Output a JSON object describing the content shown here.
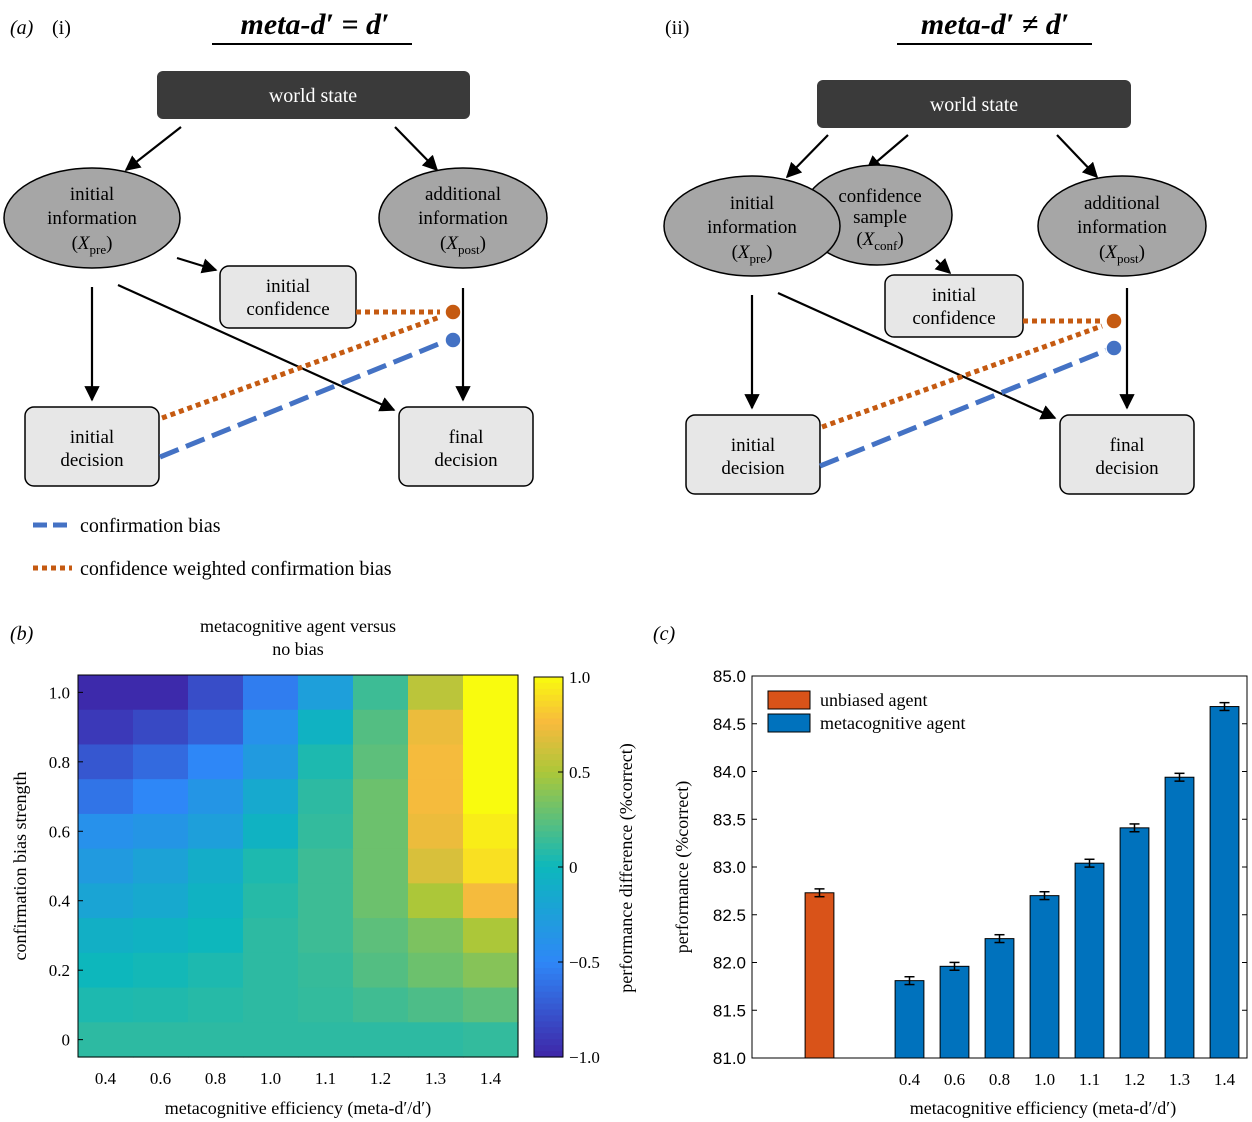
{
  "panel_a": {
    "panel_label": "(a)",
    "left": {
      "label": "(i)",
      "title": "meta-d′ = d′",
      "world_state": "world state",
      "initial_information": {
        "line1": "initial",
        "line2": "information",
        "var": "X",
        "sub": "pre"
      },
      "additional_information": {
        "line1": "additional",
        "line2": "information",
        "var": "X",
        "sub": "post"
      },
      "initial_confidence": {
        "line1": "initial",
        "line2": "confidence"
      },
      "initial_decision": {
        "line1": "initial",
        "line2": "decision"
      },
      "final_decision": {
        "line1": "final",
        "line2": "decision"
      }
    },
    "right": {
      "label": "(ii)",
      "title": "meta-d′ ≠ d′",
      "world_state": "world state",
      "initial_information": {
        "line1": "initial",
        "line2": "information",
        "var": "X",
        "sub": "pre"
      },
      "confidence_sample": {
        "line1": "confidence",
        "line2": "sample",
        "var": "X",
        "sub": "conf"
      },
      "additional_information": {
        "line1": "additional",
        "line2": "information",
        "var": "X",
        "sub": "post"
      },
      "initial_confidence": {
        "line1": "initial",
        "line2": "confidence"
      },
      "initial_decision": {
        "line1": "initial",
        "line2": "decision"
      },
      "final_decision": {
        "line1": "final",
        "line2": "decision"
      }
    },
    "legend": {
      "confirmation_bias": "confirmation bias",
      "confidence_weighted": "confidence weighted confirmation bias"
    },
    "colors": {
      "blue": "#4472c4",
      "orange": "#c55a11",
      "box_dark": "#3a3a3a",
      "node_grey": "#a6a6a6",
      "box_light": "#e7e7e7"
    }
  },
  "chart_data": [
    {
      "type": "heatmap",
      "panel_label": "(b)",
      "title": "metacognitive agent versus\nno bias",
      "xlabel": "metacognitive efficiency (meta-d′/d′)",
      "ylabel": "confirmation bias strength",
      "colorbar_label": "performance difference (%correct)",
      "x_categories": [
        "0.4",
        "0.6",
        "0.8",
        "1.0",
        "1.1",
        "1.2",
        "1.3",
        "1.4"
      ],
      "y_ticks": [
        "1.0",
        "0.8",
        "0.6",
        "0.4",
        "0.2",
        "0"
      ],
      "colorbar_ticks": [
        "1.0",
        "0.5",
        "0",
        "−0.5",
        "−1.0"
      ],
      "clim": [
        -1,
        1
      ],
      "rows_top_to_bottom": [
        [
          -0.98,
          -0.98,
          -0.8,
          -0.55,
          -0.25,
          0.15,
          0.55,
          1.0
        ],
        [
          -0.9,
          -0.82,
          -0.7,
          -0.4,
          -0.05,
          0.22,
          0.72,
          1.0
        ],
        [
          -0.75,
          -0.65,
          -0.5,
          -0.3,
          0.05,
          0.25,
          0.75,
          1.0
        ],
        [
          -0.6,
          -0.5,
          -0.35,
          -0.15,
          0.1,
          0.3,
          0.75,
          1.0
        ],
        [
          -0.4,
          -0.35,
          -0.25,
          -0.05,
          0.12,
          0.3,
          0.72,
          0.95
        ],
        [
          -0.3,
          -0.22,
          -0.1,
          0.05,
          0.15,
          0.3,
          0.65,
          0.9
        ],
        [
          -0.2,
          -0.15,
          -0.05,
          0.08,
          0.15,
          0.3,
          0.5,
          0.75
        ],
        [
          -0.08,
          -0.05,
          0.0,
          0.1,
          0.15,
          0.25,
          0.35,
          0.5
        ],
        [
          0.0,
          0.02,
          0.05,
          0.1,
          0.13,
          0.22,
          0.3,
          0.38
        ],
        [
          0.05,
          0.06,
          0.08,
          0.1,
          0.12,
          0.16,
          0.2,
          0.25
        ],
        [
          0.1,
          0.1,
          0.1,
          0.1,
          0.1,
          0.1,
          0.1,
          0.12
        ]
      ]
    },
    {
      "type": "bar",
      "panel_label": "(c)",
      "xlabel": "metacognitive efficiency (meta-d′/d′)",
      "ylabel": "performance (%correct)",
      "ylim": [
        81.0,
        85.0
      ],
      "y_ticks": [
        "85.0",
        "84.5",
        "84.0",
        "83.5",
        "83.0",
        "82.5",
        "82.0",
        "81.5",
        "81.0"
      ],
      "series": [
        {
          "name": "unbiased agent",
          "color": "#d95319",
          "categories": [
            ""
          ],
          "values": [
            82.73
          ],
          "errors": [
            0.02
          ]
        },
        {
          "name": "metacognitive agent",
          "color": "#0072bd",
          "categories": [
            "0.4",
            "0.6",
            "0.8",
            "1.0",
            "1.1",
            "1.2",
            "1.3",
            "1.4"
          ],
          "values": [
            81.81,
            81.96,
            82.25,
            82.7,
            83.04,
            83.41,
            83.94,
            84.68
          ],
          "errors": [
            0.02,
            0.02,
            0.02,
            0.02,
            0.02,
            0.02,
            0.02,
            0.02
          ]
        }
      ]
    }
  ]
}
